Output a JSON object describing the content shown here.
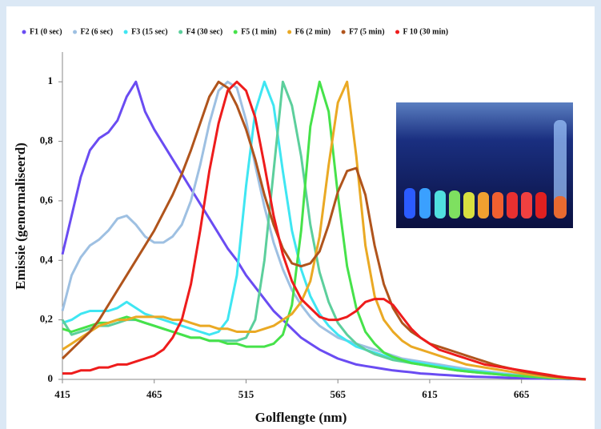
{
  "chart_data": {
    "type": "line",
    "x_label": "Golflengte (nm)",
    "y_label": "Emissie (genormaliseerd)",
    "xlim": [
      415,
      700
    ],
    "ylim": [
      0,
      1.1
    ],
    "xticks": [
      415,
      465,
      515,
      565,
      615,
      665
    ],
    "yticks": [
      0,
      {
        "value": 0.2,
        "label": "0,2"
      },
      {
        "value": 0.4,
        "label": "0,4"
      },
      {
        "value": 0.6,
        "label": "0,6"
      },
      {
        "value": 0.8,
        "label": "0,8"
      },
      1
    ],
    "x": [
      415,
      420,
      425,
      430,
      435,
      440,
      445,
      450,
      455,
      460,
      465,
      470,
      475,
      480,
      485,
      490,
      495,
      500,
      505,
      510,
      515,
      520,
      525,
      530,
      535,
      540,
      545,
      550,
      555,
      560,
      565,
      570,
      575,
      580,
      585,
      590,
      595,
      600,
      605,
      610,
      615,
      620,
      625,
      630,
      635,
      640,
      645,
      650,
      655,
      660,
      665,
      670,
      675,
      680,
      685,
      690,
      695,
      700
    ],
    "series": [
      {
        "name": "F1 (0 sec)",
        "color": "#6a4cf2",
        "values": [
          0.42,
          0.55,
          0.68,
          0.77,
          0.81,
          0.83,
          0.87,
          0.95,
          1,
          0.9,
          0.84,
          0.79,
          0.74,
          0.69,
          0.64,
          0.59,
          0.54,
          0.49,
          0.44,
          0.4,
          0.35,
          0.31,
          0.27,
          0.23,
          0.2,
          0.17,
          0.14,
          0.12,
          0.1,
          0.085,
          0.07,
          0.06,
          0.05,
          0.045,
          0.04,
          0.035,
          0.03,
          0.027,
          0.024,
          0.02,
          0.018,
          0.016,
          0.014,
          0.012,
          0.01,
          0.009,
          0.008,
          0.007,
          0.006,
          0.005,
          0.004,
          0.003,
          0.003,
          0.002,
          0.002,
          0.001,
          0.001,
          0
        ]
      },
      {
        "name": "F2 (6 sec)",
        "color": "#9ec0e2",
        "values": [
          0.23,
          0.35,
          0.41,
          0.45,
          0.47,
          0.5,
          0.54,
          0.55,
          0.52,
          0.48,
          0.46,
          0.46,
          0.48,
          0.52,
          0.6,
          0.72,
          0.86,
          0.97,
          1,
          0.98,
          0.87,
          0.72,
          0.58,
          0.46,
          0.37,
          0.3,
          0.25,
          0.21,
          0.18,
          0.16,
          0.14,
          0.13,
          0.12,
          0.11,
          0.1,
          0.09,
          0.08,
          0.07,
          0.065,
          0.06,
          0.055,
          0.05,
          0.045,
          0.04,
          0.035,
          0.03,
          0.027,
          0.024,
          0.02,
          0.017,
          0.014,
          0.011,
          0.009,
          0.007,
          0.005,
          0.003,
          0.002,
          0
        ]
      },
      {
        "name": "F3 (15 sec)",
        "color": "#3fe6f2",
        "values": [
          0.19,
          0.2,
          0.22,
          0.23,
          0.23,
          0.23,
          0.24,
          0.26,
          0.24,
          0.22,
          0.21,
          0.2,
          0.19,
          0.18,
          0.17,
          0.16,
          0.15,
          0.16,
          0.2,
          0.35,
          0.65,
          0.9,
          1,
          0.92,
          0.7,
          0.5,
          0.37,
          0.28,
          0.22,
          0.18,
          0.15,
          0.13,
          0.11,
          0.1,
          0.09,
          0.08,
          0.07,
          0.065,
          0.06,
          0.055,
          0.05,
          0.045,
          0.04,
          0.035,
          0.03,
          0.027,
          0.024,
          0.02,
          0.017,
          0.014,
          0.012,
          0.01,
          0.008,
          0.006,
          0.004,
          0.003,
          0.002,
          0
        ]
      },
      {
        "name": "F4 (30 sec)",
        "color": "#5ccf9c",
        "values": [
          0.2,
          0.15,
          0.16,
          0.17,
          0.18,
          0.18,
          0.19,
          0.2,
          0.2,
          0.19,
          0.18,
          0.17,
          0.16,
          0.15,
          0.14,
          0.14,
          0.13,
          0.13,
          0.13,
          0.13,
          0.14,
          0.2,
          0.4,
          0.7,
          1,
          0.92,
          0.75,
          0.52,
          0.36,
          0.26,
          0.19,
          0.15,
          0.12,
          0.1,
          0.085,
          0.075,
          0.065,
          0.06,
          0.055,
          0.05,
          0.045,
          0.04,
          0.035,
          0.03,
          0.027,
          0.024,
          0.021,
          0.018,
          0.015,
          0.013,
          0.011,
          0.009,
          0.007,
          0.005,
          0.004,
          0.003,
          0.002,
          0
        ]
      },
      {
        "name": "F5 (1 min)",
        "color": "#46e24a",
        "values": [
          0.17,
          0.16,
          0.17,
          0.18,
          0.19,
          0.19,
          0.2,
          0.21,
          0.2,
          0.19,
          0.18,
          0.17,
          0.16,
          0.15,
          0.14,
          0.14,
          0.13,
          0.13,
          0.12,
          0.12,
          0.11,
          0.11,
          0.11,
          0.12,
          0.15,
          0.25,
          0.5,
          0.85,
          1,
          0.9,
          0.62,
          0.38,
          0.24,
          0.16,
          0.12,
          0.09,
          0.075,
          0.065,
          0.055,
          0.05,
          0.045,
          0.04,
          0.035,
          0.03,
          0.027,
          0.024,
          0.021,
          0.018,
          0.015,
          0.013,
          0.011,
          0.009,
          0.007,
          0.005,
          0.004,
          0.003,
          0.002,
          0
        ]
      },
      {
        "name": "F6 (2 min)",
        "color": "#eaa924",
        "values": [
          0.1,
          0.12,
          0.14,
          0.16,
          0.18,
          0.19,
          0.2,
          0.2,
          0.21,
          0.21,
          0.21,
          0.21,
          0.2,
          0.2,
          0.19,
          0.18,
          0.18,
          0.17,
          0.17,
          0.16,
          0.16,
          0.16,
          0.17,
          0.18,
          0.2,
          0.22,
          0.26,
          0.33,
          0.48,
          0.72,
          0.93,
          1,
          0.75,
          0.45,
          0.28,
          0.2,
          0.16,
          0.13,
          0.11,
          0.1,
          0.09,
          0.08,
          0.07,
          0.06,
          0.05,
          0.045,
          0.04,
          0.035,
          0.03,
          0.025,
          0.02,
          0.016,
          0.012,
          0.009,
          0.006,
          0.004,
          0.002,
          0
        ]
      },
      {
        "name": "F7 (5 min)",
        "color": "#b0541c",
        "values": [
          0.07,
          0.1,
          0.13,
          0.16,
          0.2,
          0.25,
          0.3,
          0.35,
          0.4,
          0.45,
          0.5,
          0.56,
          0.62,
          0.69,
          0.77,
          0.86,
          0.95,
          1,
          0.98,
          0.92,
          0.84,
          0.74,
          0.62,
          0.52,
          0.44,
          0.39,
          0.38,
          0.39,
          0.43,
          0.52,
          0.63,
          0.7,
          0.71,
          0.62,
          0.45,
          0.32,
          0.24,
          0.19,
          0.16,
          0.14,
          0.12,
          0.11,
          0.1,
          0.09,
          0.08,
          0.07,
          0.06,
          0.05,
          0.042,
          0.035,
          0.028,
          0.022,
          0.017,
          0.012,
          0.008,
          0.005,
          0.002,
          0
        ]
      },
      {
        "name": "F 10 (30 min)",
        "color": "#ee1c1c",
        "values": [
          0.02,
          0.02,
          0.03,
          0.03,
          0.04,
          0.04,
          0.05,
          0.05,
          0.06,
          0.07,
          0.08,
          0.1,
          0.14,
          0.2,
          0.32,
          0.5,
          0.7,
          0.86,
          0.97,
          1,
          0.97,
          0.88,
          0.72,
          0.55,
          0.42,
          0.33,
          0.27,
          0.24,
          0.21,
          0.2,
          0.2,
          0.21,
          0.23,
          0.26,
          0.27,
          0.27,
          0.25,
          0.21,
          0.17,
          0.14,
          0.12,
          0.1,
          0.09,
          0.08,
          0.07,
          0.06,
          0.05,
          0.045,
          0.04,
          0.035,
          0.03,
          0.025,
          0.02,
          0.015,
          0.01,
          0.006,
          0.003,
          0
        ]
      }
    ]
  }
}
